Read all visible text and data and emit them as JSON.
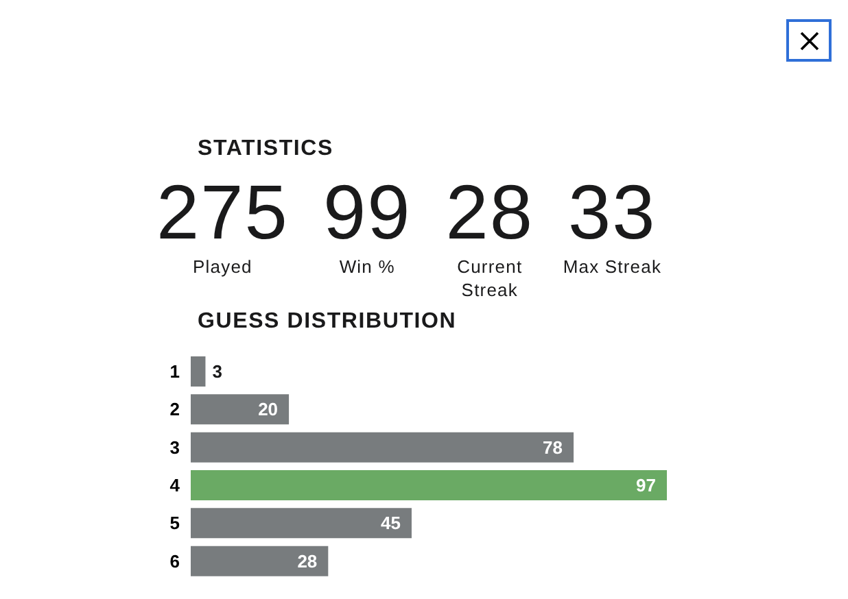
{
  "chart_data": [
    {
      "type": "other",
      "title": "STATISTICS",
      "categories": [
        "Played",
        "Win %",
        "Current Streak",
        "Max Streak"
      ],
      "values": [
        275,
        99,
        28,
        33
      ],
      "data_labels": true
    },
    {
      "type": "bar",
      "title": "GUESS DISTRIBUTION",
      "orientation": "horizontal",
      "categories": [
        "1",
        "2",
        "3",
        "4",
        "5",
        "6"
      ],
      "values": [
        3,
        20,
        78,
        97,
        45,
        28
      ],
      "colors": [
        "#787c7e",
        "#787c7e",
        "#787c7e",
        "#6aaa64",
        "#787c7e",
        "#787c7e"
      ],
      "data_labels": true
    }
  ]
}
